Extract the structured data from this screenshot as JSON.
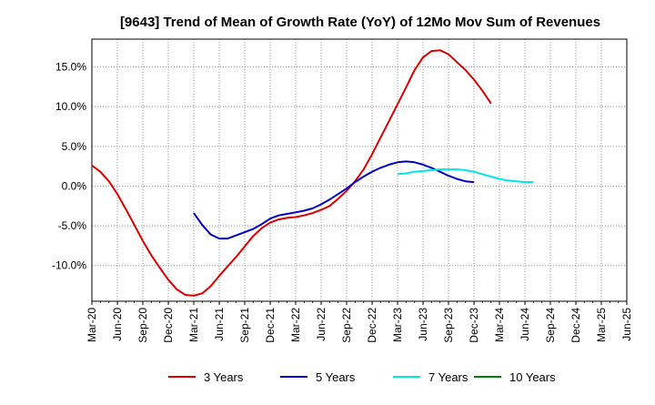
{
  "chart_data": {
    "type": "line",
    "title": "[9643]  Trend of Mean of Growth Rate (YoY) of 12Mo Mov Sum of Revenues",
    "xlabel": "",
    "ylabel": "",
    "ylim": [
      -14.5,
      18.5
    ],
    "y_ticks": [
      15,
      10,
      5,
      0,
      -5,
      -10
    ],
    "y_tick_labels": [
      "15.0%",
      "10.0%",
      "5.0%",
      "0.0%",
      "-5.0%",
      "-10.0%"
    ],
    "x_tick_labels": [
      "Mar-20",
      "Jun-20",
      "Sep-20",
      "Dec-20",
      "Mar-21",
      "Jun-21",
      "Sep-21",
      "Dec-21",
      "Mar-22",
      "Jun-22",
      "Sep-22",
      "Dec-22",
      "Mar-23",
      "Jun-23",
      "Sep-23",
      "Dec-23",
      "Mar-24",
      "Jun-24",
      "Sep-24",
      "Dec-24",
      "Mar-25",
      "Jun-25"
    ],
    "grid": true,
    "legend_position": "bottom",
    "series": [
      {
        "name": "3 Years",
        "color": "#dd0000",
        "start_index": 0,
        "values": [
          2.6,
          1.8,
          0.6,
          -1.0,
          -2.9,
          -4.9,
          -6.9,
          -8.7,
          -10.3,
          -11.8,
          -13.0,
          -13.7,
          -13.8,
          -13.5,
          -12.6,
          -11.3,
          -10.1,
          -8.9,
          -7.6,
          -6.3,
          -5.3,
          -4.6,
          -4.2,
          -4.0,
          -3.9,
          -3.7,
          -3.4,
          -3.0,
          -2.5,
          -1.6,
          -0.6,
          0.6,
          2.1,
          4.0,
          6.1,
          8.2,
          10.3,
          12.4,
          14.6,
          16.2,
          17.0,
          17.1,
          16.6,
          15.6,
          14.6,
          13.4,
          12.0,
          10.4
        ]
      },
      {
        "name": "5 Years",
        "color": "#0000cc",
        "start_index": 12,
        "values": [
          -3.4,
          -4.9,
          -6.1,
          -6.6,
          -6.6,
          -6.2,
          -5.8,
          -5.4,
          -4.8,
          -4.1,
          -3.7,
          -3.5,
          -3.3,
          -3.1,
          -2.8,
          -2.3,
          -1.7,
          -1.0,
          -0.3,
          0.5,
          1.2,
          1.8,
          2.3,
          2.7,
          3.0,
          3.1,
          3.0,
          2.7,
          2.3,
          1.8,
          1.3,
          0.9,
          0.6,
          0.5
        ]
      },
      {
        "name": "7 Years",
        "color": "#00e5e5",
        "start_index": 36,
        "values": [
          1.5,
          1.6,
          1.8,
          1.9,
          2.0,
          2.1,
          2.1,
          2.1,
          2.0,
          1.8,
          1.5,
          1.2,
          0.9,
          0.7,
          0.6,
          0.5,
          0.5
        ]
      },
      {
        "name": "10 Years",
        "color": "#008000",
        "start_index": 0,
        "values": []
      }
    ]
  }
}
